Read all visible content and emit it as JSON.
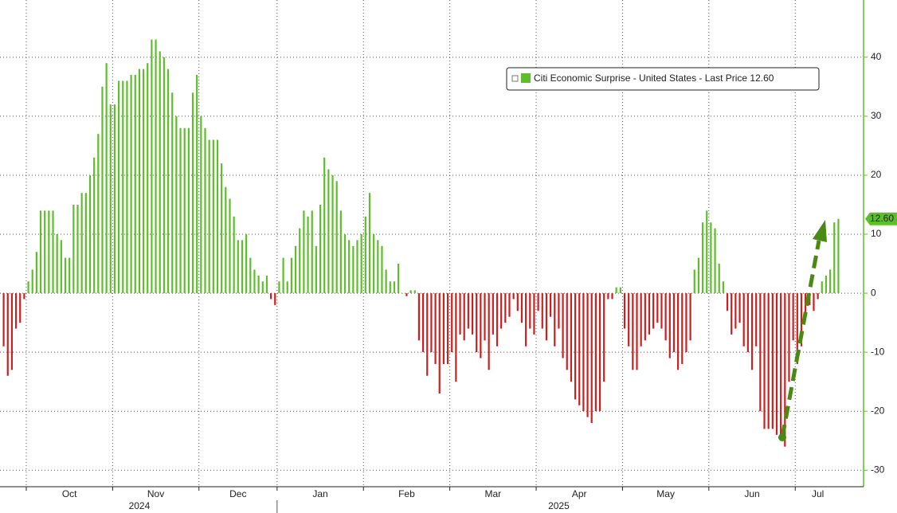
{
  "chart_data": {
    "type": "bar",
    "legend": "Citi Economic Surprise - United States - Last Price 12.60",
    "last_value_label": "12.60",
    "pos_color": "#5cbf2a",
    "neg_color": "#cc2020",
    "axis_color": "#5cbf2a",
    "values": [
      -9,
      -14,
      -13,
      -6,
      -5,
      -1,
      2,
      4,
      7,
      14,
      14,
      14,
      14,
      10,
      9,
      6,
      6,
      15,
      15,
      17,
      17,
      20,
      23,
      27,
      35,
      39,
      32,
      32,
      36,
      36,
      36,
      37,
      37,
      38,
      38,
      39,
      43,
      43,
      41,
      40,
      38,
      34,
      30,
      28,
      28,
      28,
      34,
      37,
      30,
      28,
      26,
      26,
      26,
      22,
      18,
      16,
      13,
      9,
      9,
      10,
      6,
      4,
      3,
      2,
      3,
      -1,
      -2,
      2,
      6,
      2,
      6,
      8,
      11,
      14,
      13,
      14,
      8,
      15,
      23,
      21,
      20,
      19,
      14,
      10,
      9,
      8,
      9,
      10,
      13,
      17,
      10,
      9,
      8,
      4,
      2,
      2,
      5,
      0,
      -0.5,
      0.5,
      0.5,
      -8,
      -10,
      -14,
      -10,
      -12,
      -17,
      -12,
      -12,
      -10,
      -15,
      -7,
      -8,
      -6,
      -7,
      -10,
      -11,
      -8,
      -13,
      -7,
      -9,
      -6,
      -5,
      -4,
      -1,
      -3,
      -5,
      -9,
      -6,
      -7,
      -3,
      -6,
      -8,
      -4,
      -9,
      -6,
      -11,
      -13,
      -15,
      -18,
      -19,
      -20,
      -21,
      -22,
      -20,
      -20,
      -15,
      -1,
      -1,
      1,
      1,
      -6,
      -9,
      -13,
      -13,
      -9,
      -8,
      -7,
      -6,
      -5,
      -6,
      -8,
      -11,
      -10,
      -13,
      -12,
      -10,
      -8,
      4,
      6,
      12,
      14,
      12,
      11,
      5,
      2,
      -3,
      -7,
      -6,
      -5,
      -9,
      -10,
      -13,
      -9,
      -20,
      -23,
      -23,
      -23,
      -24,
      -25,
      -26,
      -15,
      -8,
      -12,
      -9,
      -4,
      -2,
      -3,
      -1,
      2,
      3,
      4,
      12,
      12.6
    ],
    "xticks": [
      {
        "value": 6,
        "label": "Oct"
      },
      {
        "value": 27,
        "label": "Nov"
      },
      {
        "value": 48,
        "label": "Dec"
      },
      {
        "value": 67,
        "label": "Jan"
      },
      {
        "value": 88,
        "label": "Feb"
      },
      {
        "value": 109,
        "label": "Mar"
      },
      {
        "value": 130,
        "label": "Apr"
      },
      {
        "value": 151,
        "label": "May"
      },
      {
        "value": 172,
        "label": "Jun"
      },
      {
        "value": 193,
        "label": "Jul"
      }
    ],
    "years": [
      {
        "value": 0,
        "label": "2024"
      },
      {
        "value": 67,
        "label": "2025"
      }
    ],
    "ylim": [
      -32.8,
      49.7
    ],
    "yticks": [
      40,
      30,
      20,
      10,
      0,
      -10,
      -20,
      -30
    ],
    "grid": true
  }
}
